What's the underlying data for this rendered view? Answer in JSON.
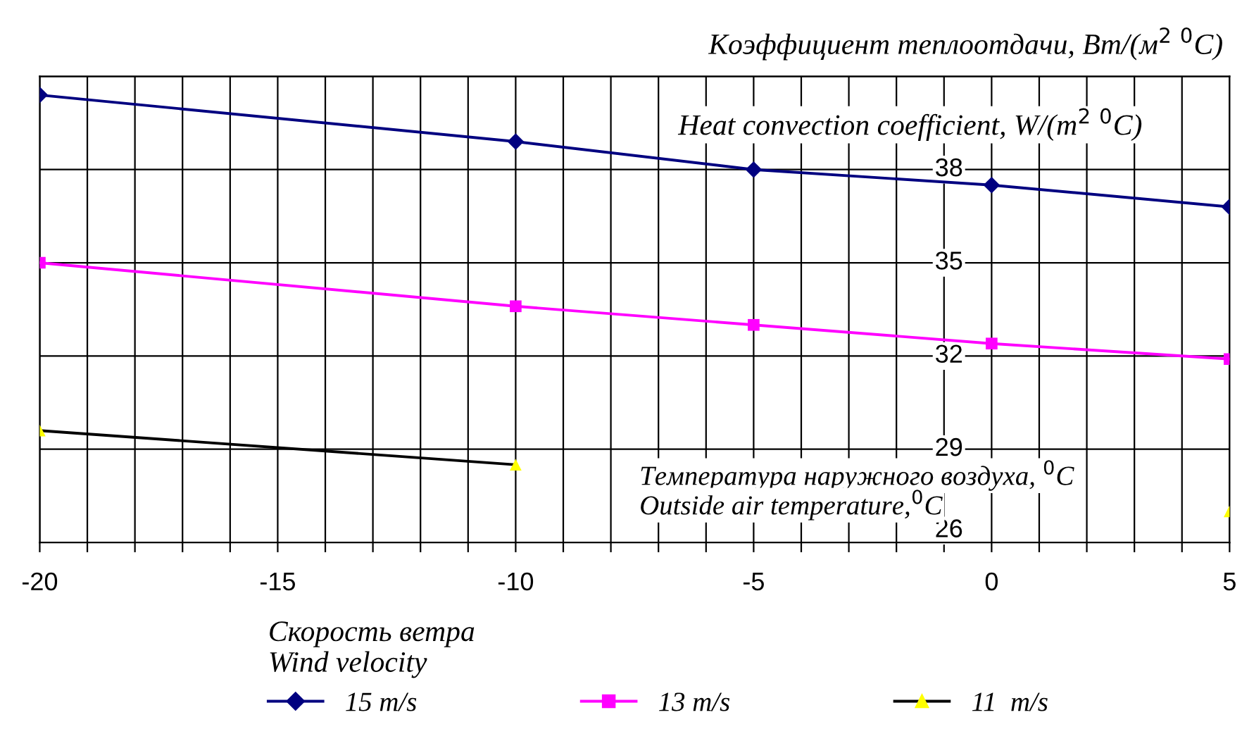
{
  "chart_data": {
    "type": "line",
    "ylabel": "Коэффициент теплоотдачи, Вт/(м$^{2}$ $^{0}$C)\nHeat convection coefficient, W/(m$^{2}$ $^{0}$C)",
    "xlabel": "Температура наружного воздуха, $^{0}$C\nOutside air temperature,$^{0}$C",
    "legend_title": "Скорость ветра\nWind velocity",
    "x": [
      -20,
      -10,
      -5,
      0,
      5
    ],
    "series": [
      {
        "name": "15 m/s",
        "color": "#000080",
        "marker": "diamond",
        "values": [
          40.4,
          38.9,
          38.0,
          37.5,
          36.8
        ]
      },
      {
        "name": "13 m/s",
        "color": "#ff00ff",
        "marker": "square",
        "values": [
          35.0,
          33.6,
          33.0,
          32.4,
          31.9
        ]
      },
      {
        "name": "11  m/s",
        "color": "#000000",
        "colors": [
          "#ffff00",
          "#ffff00",
          "#ffff00",
          "#ffff00",
          "#ffff00"
        ],
        "marker": "triangle",
        "values": [
          29.6,
          28.5,
          null,
          null,
          27.0
        ]
      }
    ],
    "xlim": [
      -20,
      5
    ],
    "xticks": [
      -20,
      {
        "value": -19,
        "label": null
      },
      {
        "value": -18,
        "label": null
      },
      {
        "value": -17,
        "label": null
      },
      {
        "value": -16,
        "label": null
      },
      -15,
      {
        "value": -14,
        "label": null
      },
      {
        "value": -13,
        "label": null
      },
      {
        "value": -12,
        "label": null
      },
      {
        "value": -11,
        "label": null
      },
      -10,
      {
        "value": -9,
        "label": null
      },
      {
        "value": -8,
        "label": null
      },
      {
        "value": -7,
        "label": null
      },
      {
        "value": -6,
        "label": null
      },
      -5,
      {
        "value": -4,
        "label": null
      },
      {
        "value": -3,
        "label": null
      },
      {
        "value": -2,
        "label": null
      },
      {
        "value": -1,
        "label": null
      },
      0,
      {
        "value": 1,
        "label": null
      },
      {
        "value": 2,
        "label": null
      },
      {
        "value": 3,
        "label": null
      },
      {
        "value": 4,
        "label": null
      },
      5
    ],
    "ylim": [
      26,
      41
    ],
    "yticks": [
      26,
      29,
      32,
      35,
      38,
      {
        "value": 41,
        "label": null
      }
    ],
    "grid": true,
    "legend": "bottom"
  }
}
